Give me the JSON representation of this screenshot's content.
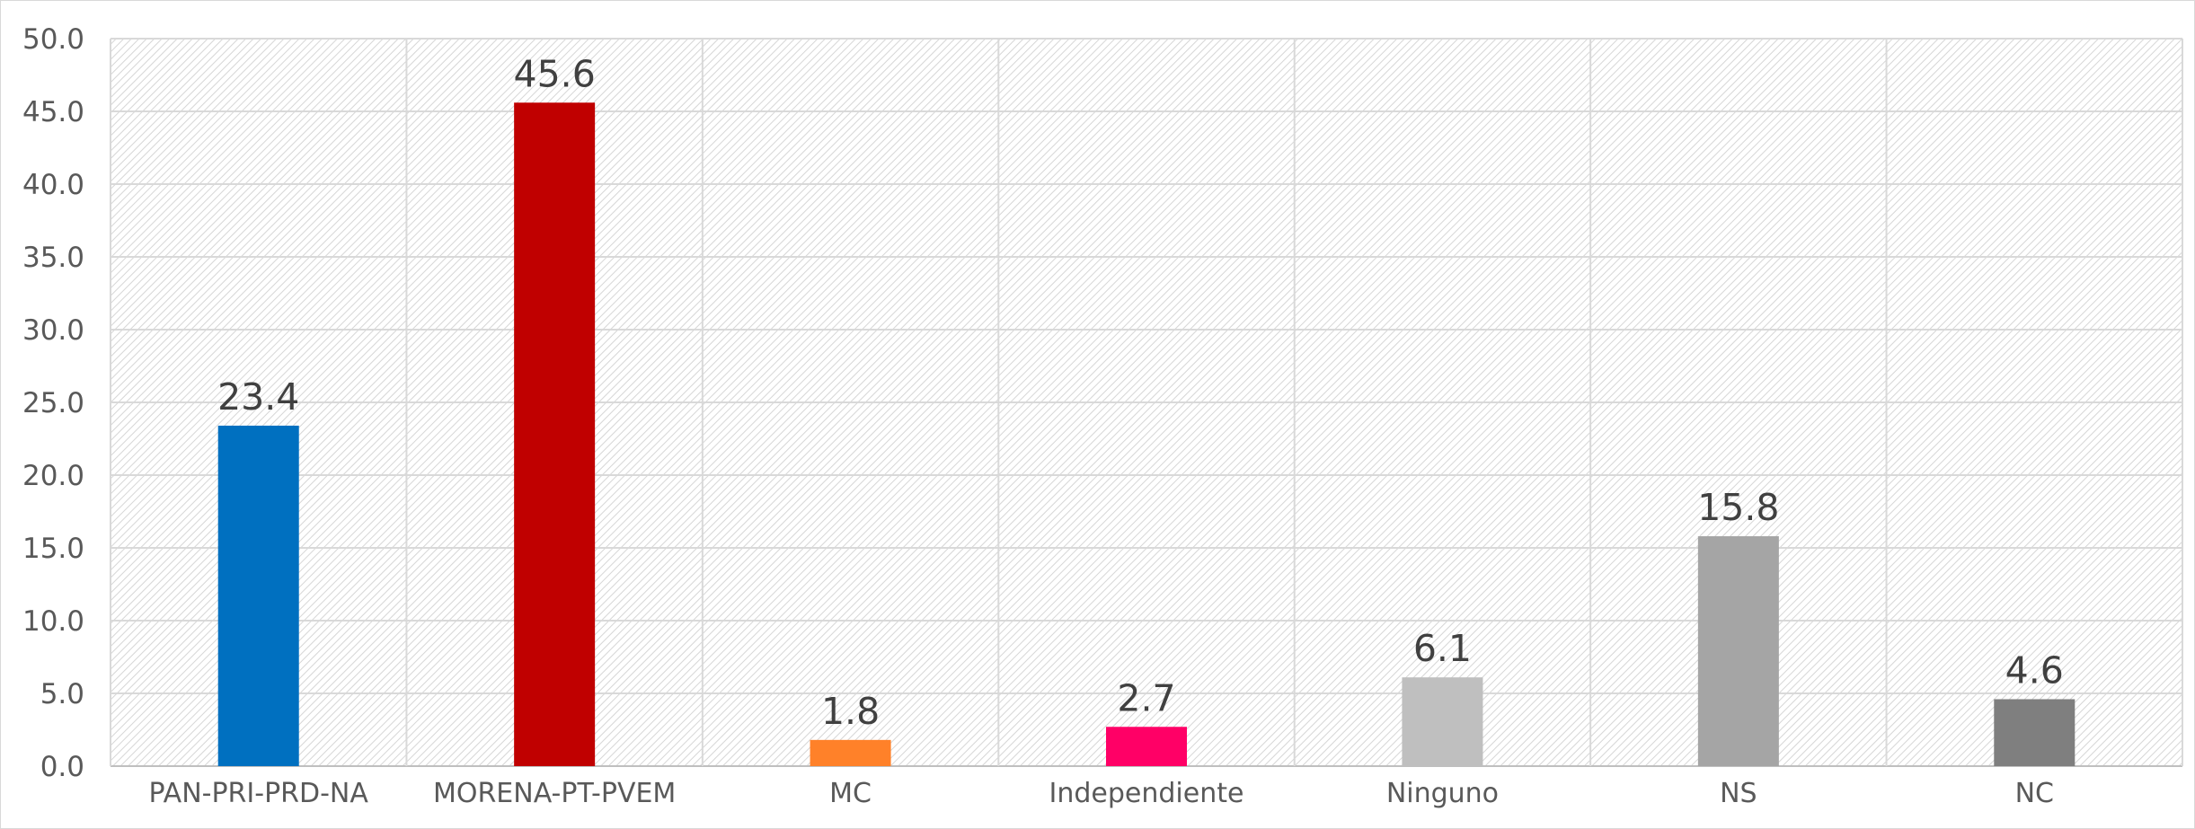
{
  "chart_data": {
    "type": "bar",
    "categories": [
      "PAN-PRI-PRD-NA",
      "MORENA-PT-PVEM",
      "MC",
      "Independiente",
      "Ninguno",
      "NS",
      "NC"
    ],
    "values": [
      23.4,
      45.6,
      1.8,
      2.7,
      6.1,
      15.8,
      4.6
    ],
    "value_labels": [
      "23.4",
      "45.6",
      "1.8",
      "2.7",
      "6.1",
      "15.8",
      "4.6"
    ],
    "colors": [
      "#0070c0",
      "#c00000",
      "#ff8129",
      "#ff0066",
      "#bfbfbf",
      "#a5a5a5",
      "#7f7f7f"
    ],
    "ylim": [
      0,
      50
    ],
    "yticks": [
      0,
      5,
      10,
      15,
      20,
      25,
      30,
      35,
      40,
      45,
      50
    ],
    "ytick_labels": [
      "0.0",
      "5.0",
      "10.0",
      "15.0",
      "20.0",
      "25.0",
      "30.0",
      "35.0",
      "40.0",
      "45.0",
      "50.0"
    ],
    "grid": true,
    "plot_background": "hatched-light-gray",
    "legend": "none",
    "title": "",
    "xlabel": "",
    "ylabel": ""
  }
}
